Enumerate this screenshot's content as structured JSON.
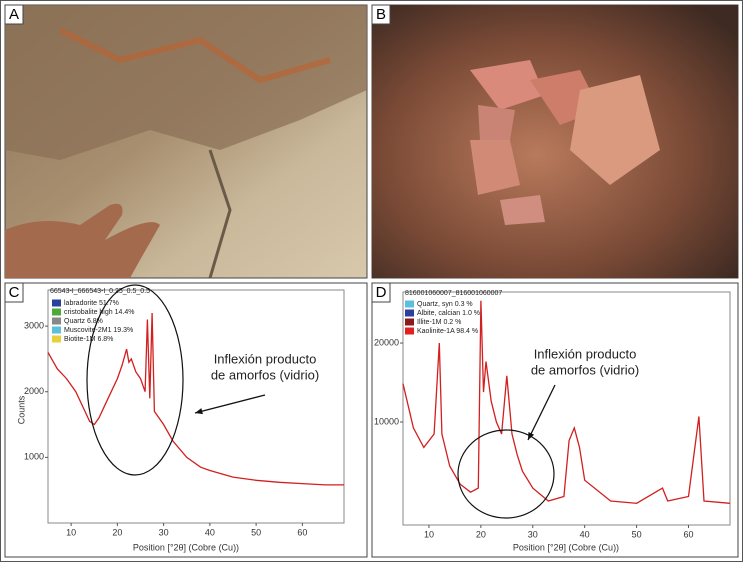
{
  "panels": [
    {
      "label": "A"
    },
    {
      "label": "B"
    },
    {
      "label": "C"
    },
    {
      "label": "D"
    }
  ],
  "chart_data": [
    {
      "type": "line",
      "title": "66543-I_666543-I_0.25_0.5_0.5",
      "ylabel": "Counts",
      "xlabel": "Position [°2θ] (Cobre (Cu))",
      "x": [
        5,
        7,
        9,
        11,
        13,
        14,
        15,
        16,
        18,
        20,
        21,
        22,
        22.5,
        23,
        24,
        25,
        26,
        26.5,
        27,
        27.5,
        28,
        30,
        32,
        35,
        38,
        40,
        45,
        50,
        55,
        60,
        65,
        69
      ],
      "values": [
        2600,
        2350,
        2200,
        2000,
        1700,
        1550,
        1500,
        1600,
        1900,
        2200,
        2400,
        2650,
        2450,
        2500,
        2300,
        2200,
        2000,
        3100,
        1900,
        3200,
        1700,
        1500,
        1250,
        1000,
        850,
        800,
        700,
        650,
        620,
        600,
        580,
        580
      ],
      "color": "#d21f1f",
      "xlim": [
        5,
        69
      ],
      "xticks": [
        10,
        20,
        30,
        40,
        50,
        60
      ],
      "ylim": [
        0,
        3550
      ],
      "yticks": [
        1000,
        2000,
        3000
      ],
      "log_y": false,
      "legend": "upper left",
      "legend_entries": [
        {
          "name": "labradorite 51.7%",
          "color": "#2b3f9e"
        },
        {
          "name": "cristobalite high 14.4%",
          "color": "#4caa3a"
        },
        {
          "name": "Quartz 6.8%",
          "color": "#888888"
        },
        {
          "name": "Muscovite-2M1 19.3%",
          "color": "#5bc0de"
        },
        {
          "name": "Biotite-1M 6.8%",
          "color": "#e8d03a"
        }
      ],
      "annotation": [
        "Inflexión producto",
        "de amorfos (vidrio)"
      ]
    },
    {
      "type": "line",
      "title": "816001060007_816001060007",
      "xlabel": "Position [°2θ] (Cobre (Cu))",
      "x": [
        5,
        7,
        9,
        11,
        12,
        12.5,
        14,
        16,
        18,
        19.5,
        20,
        20.5,
        21,
        22,
        23,
        24,
        25,
        26,
        27,
        28,
        30,
        33,
        36,
        37,
        38,
        39,
        40,
        45,
        50,
        55,
        56,
        60,
        62,
        63,
        68
      ],
      "values": [
        14000,
        9500,
        8000,
        9000,
        20000,
        9000,
        6800,
        5800,
        5400,
        5600,
        29000,
        13000,
        17000,
        12000,
        10000,
        9000,
        15000,
        9000,
        7500,
        6500,
        5600,
        5000,
        5200,
        8500,
        9500,
        8000,
        6000,
        5000,
        4900,
        5600,
        5000,
        5200,
        10500,
        5000,
        4900
      ],
      "color": "#d21f1f",
      "xlim": [
        5,
        68
      ],
      "xticks": [
        10,
        20,
        30,
        40,
        50,
        60
      ],
      "ylim": [
        4050,
        31300
      ],
      "yticks": [
        10000,
        20000
      ],
      "log_y": true,
      "legend": "upper left",
      "legend_entries": [
        {
          "name": "Quartz, syn 0.3 %",
          "color": "#5bc0de"
        },
        {
          "name": "Albite, calcian 1.0 %",
          "color": "#2b3f9e"
        },
        {
          "name": "Illite-1M 0.2 %",
          "color": "#8b1a1a"
        },
        {
          "name": "Kaolinite-1A 98.4 %",
          "color": "#e02020"
        }
      ],
      "annotation": [
        "Inflexión producto",
        "de amorfos (vidrio)"
      ]
    }
  ]
}
